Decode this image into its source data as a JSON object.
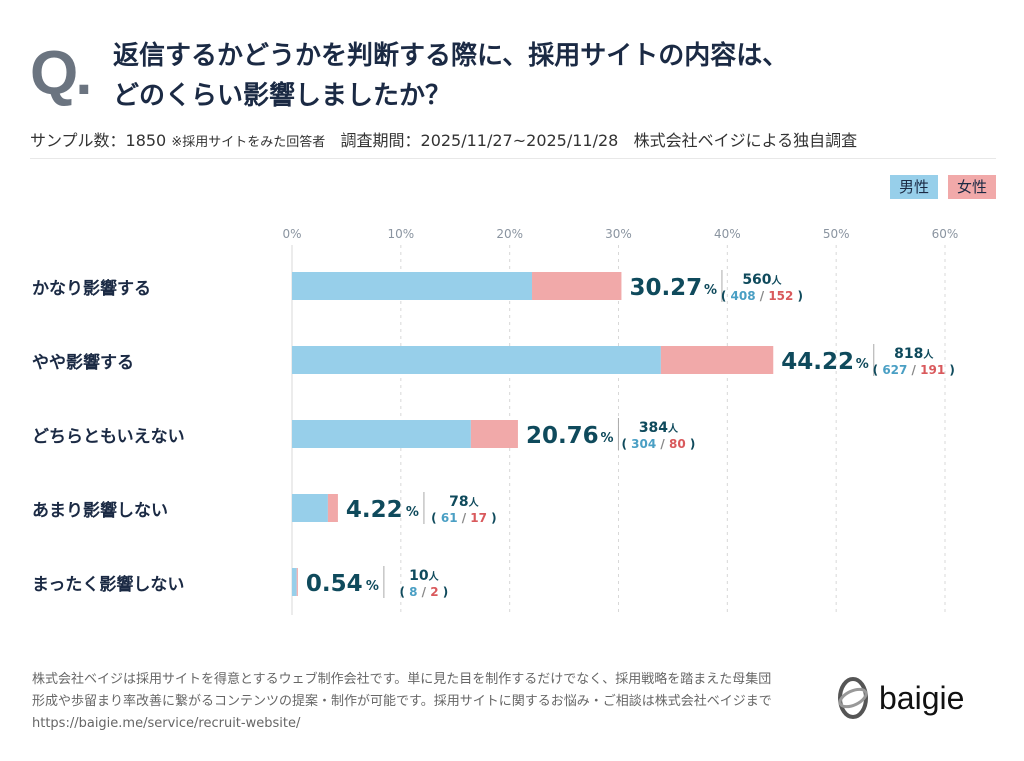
{
  "header": {
    "q_mark": "Q.",
    "title_line1": "返信するかどうかを判断する際に、採用サイトの内容は、",
    "title_line2": "どのくらい影響しましたか？",
    "sample": "サンプル数：1850",
    "sample_note": "※採用サイトをみた回答者",
    "period": "調査期間：2025/11/27~2025/11/28",
    "source": "株式会社ベイジによる独自調査"
  },
  "chart_data": {
    "type": "bar",
    "orientation": "horizontal",
    "stacked": true,
    "xlim": [
      0,
      60
    ],
    "ticks": [
      "0%",
      "10%",
      "20%",
      "30%",
      "40%",
      "50%",
      "60%"
    ],
    "grid": true,
    "legend": {
      "placement": "top-right",
      "entries": [
        {
          "name": "男性",
          "color": "#97cfea"
        },
        {
          "name": "女性",
          "color": "#f1a9a9"
        }
      ]
    },
    "categories": [
      "かなり影響する",
      "やや影響する",
      "どちらともいえない",
      "あまり影響しない",
      "まったく影響しない"
    ],
    "percent_labels": [
      "30.27",
      "44.22",
      "20.76",
      "4.22",
      "0.54"
    ],
    "values": [
      30.27,
      44.22,
      20.76,
      4.22,
      0.54
    ],
    "totals": [
      560,
      818,
      384,
      78,
      10
    ],
    "male": [
      408,
      627,
      304,
      61,
      8
    ],
    "female": [
      152,
      191,
      80,
      17,
      2
    ],
    "unit_percent": "%",
    "unit_people": "人"
  },
  "colors": {
    "male": "#97cfea",
    "female": "#f1a9a9",
    "value_text": "#0f4a5c",
    "male_text": "#4a9fc4",
    "female_text": "#d9595c"
  },
  "footer": {
    "line1": "株式会社ベイジは採用サイトを得意とするウェブ制作会社です。単に見た目を制作するだけでなく、採用戦略を踏まえた母集団",
    "line2": "形成や歩留まり率改善に繋がるコンテンツの提案・制作が可能です。採用サイトに関するお悩み・ご相談は株式会社ベイジまで",
    "url": "https://baigie.me/service/recruit-website/"
  },
  "logo": {
    "text": "baigie"
  }
}
